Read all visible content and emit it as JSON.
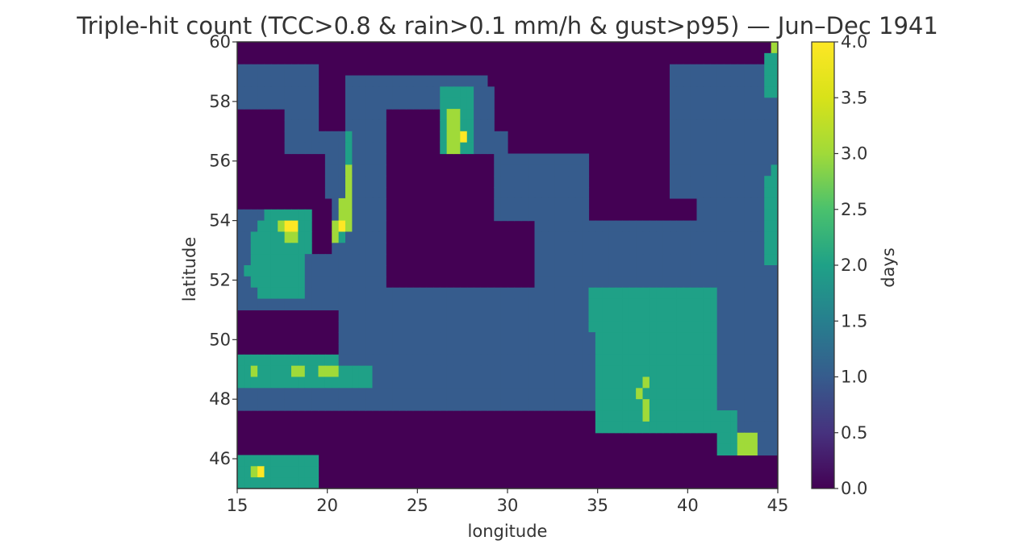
{
  "chart_data": {
    "type": "heatmap",
    "title": "Triple-hit count (TCC>0.8 & rain>0.1 mm/h & gust>p95) — Jun–Dec 1941",
    "xlabel": "longitude",
    "ylabel": "latitude",
    "xlim": [
      15,
      45
    ],
    "ylim": [
      45,
      60
    ],
    "x_ticks": [
      "15",
      "20",
      "25",
      "30",
      "35",
      "40",
      "45"
    ],
    "y_ticks": [
      "46",
      "48",
      "50",
      "52",
      "54",
      "56",
      "58",
      "60"
    ],
    "colorbar": {
      "label": "days",
      "range": [
        0.0,
        4.0
      ],
      "ticks": [
        "0.0",
        "0.5",
        "1.0",
        "1.5",
        "2.0",
        "2.5",
        "3.0",
        "3.5",
        "4.0"
      ],
      "colormap": "viridis"
    },
    "grid": false,
    "legend": "none",
    "grid_resolution_deg": [
      0.375,
      0.375
    ],
    "grid_columns": 80,
    "grid_rows": 40,
    "row_order": "north-to-south",
    "rows": [
      "00000000000000000000000000000000000000000000000000000000000000000000000000000003",
      "00000000000000000000000000000000000000000000000000000000000000000000000000000022",
      "11111111111100000000000000000000000000000000000000000000000000001111111111111122",
      "11111111111100001111111111111111111110000000000000000000000000001111111111111122",
      "11111111111100001111111111111122222111000000000000000000000000001111111111111122",
      "11111111111100001111111111111122222111000000000000000000000000001111111111111111",
      "00000001111100001111110000000023322111000000000000000000000000001111111111111111",
      "00000001111100001111110000000023322111000000000000000000000000001111111111111111",
      "00000001111111112111110000000023342111110000000000000000000000001111111111111111",
      "00000001111111112111110000000023322111110000000000000000000000001111111111111111",
      "00000000000001112111110000000000000000111111111111110000000000001111111111111111",
      "00000000000001113111110000000000000000111111111111110000000000001111111111111112",
      "00000000000001113111110000000000000000111111111111110000000000001111111111111122",
      "00000000000001113111110000000000000000111111111111110000000000001111111111111122",
      "00000000000000133111110000000000000000111111111111110000000000000000111111111122",
      "11112222222000133111110000000000000000111111111111110000000000000000111111111122",
      "11122234422000343111110000000000000000000000111111111111111111111111111111111122",
      "11222223322000321111110000000000000000000000111111111111111111111111111111111122",
      "11222222222000111111110000000000000000000000111111111111111111111111111111111122",
      "11222222221111111111110000000000000000000000111111111111111111111111111111111122",
      "12222222221111111111110000000000000000000000111111111111111111111111111111111111",
      "11222222221111111111110000000000000000000000111111111111111111111111111111111111",
      "11122222221111111111111111111111111111111111111111112222222222222222222111111111",
      "11111111111111111111111111111111111111111111111111112222222222222222222111111111",
      "00000000000000011111111111111111111111111111111111112222222222222222222111111111",
      "00000000000000011111111111111111111111111111111111112222222222222222222111111111",
      "00000000000000011111111111111111111111111111111111111222222222222222222111111111",
      "00000000000000011111111111111111111111111111111111111222222222222222222111111111",
      "22222222222222211111111111111111111111111111111111111222222222222222222111111111",
      "22322222332233322222111111111111111111111111111111111222222222222222222111111111",
      "22222222222222222222111111111111111111111111111111111222222232222222222111111111",
      "11111111111111111111111111111111111111111111111111111222222322222222222111111111",
      "11111111111111111111111111111111111111111111111111111222222232222222222111111111",
      "00000000000000000000000000000000000000000000000000000222222232222222222222111111",
      "00000000000000000000000000000000000000000000000000000222222222222222222222111111",
      "00000000000000000000000000000000000000000000000000000000000000000000000222333111",
      "00000000000000000000000000000000000000000000000000000000000000000000000222333111",
      "22222222222200000000000000000000000000000000000000000000000000000000000000000000",
      "22342222222200000000000000000000000000000000000000000000000000000000000000000000",
      "22222222222200000000000000000000000000000000000000000000000000000000000000000000"
    ]
  }
}
